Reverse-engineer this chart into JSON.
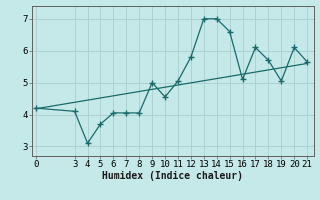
{
  "xlabel": "Humidex (Indice chaleur)",
  "ylabel": "",
  "background_color": "#c5e8e8",
  "grid_color": "#a8cece",
  "line_color": "#1a6b6b",
  "trend_color": "#1a6b6b",
  "x_data": [
    0,
    3,
    4,
    5,
    6,
    7,
    8,
    9,
    10,
    11,
    12,
    13,
    14,
    15,
    16,
    17,
    18,
    19,
    20,
    21
  ],
  "y_data": [
    4.2,
    4.1,
    3.1,
    3.7,
    4.05,
    4.05,
    4.05,
    5.0,
    4.55,
    5.05,
    5.8,
    7.0,
    7.0,
    6.6,
    5.1,
    6.1,
    5.7,
    5.05,
    6.1,
    5.65
  ],
  "trend_x": [
    0,
    21
  ],
  "trend_y": [
    4.18,
    5.6
  ],
  "xlim": [
    -0.3,
    21.5
  ],
  "ylim": [
    2.7,
    7.4
  ],
  "yticks": [
    3,
    4,
    5,
    6,
    7
  ],
  "xticks": [
    0,
    3,
    4,
    5,
    6,
    7,
    8,
    9,
    10,
    11,
    12,
    13,
    14,
    15,
    16,
    17,
    18,
    19,
    20,
    21
  ],
  "marker": "+",
  "markersize": 4,
  "markeredgewidth": 1.0,
  "linewidth": 0.9,
  "fontsize_label": 7,
  "fontsize_tick": 6.5
}
